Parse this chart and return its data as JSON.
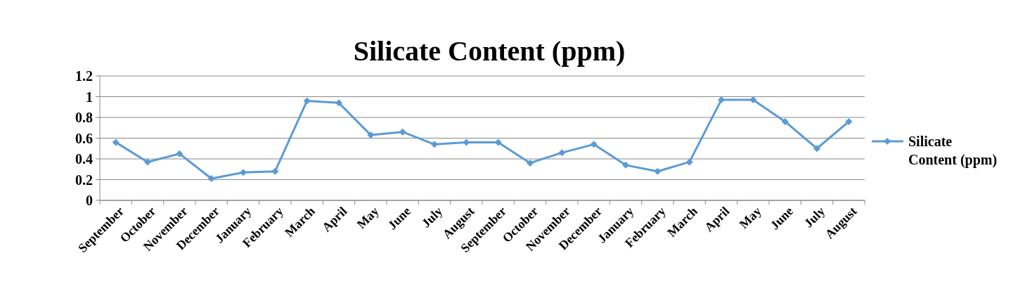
{
  "chart_data": {
    "type": "line",
    "title": "Silicate Content (ppm)",
    "categories": [
      "September",
      "October",
      "November",
      "December",
      "January",
      "February",
      "March",
      "April",
      "May",
      "June",
      "July",
      "August",
      "September",
      "October",
      "November",
      "December",
      "January",
      "February",
      "March",
      "April",
      "May",
      "June",
      "July",
      "August"
    ],
    "series": [
      {
        "name": "Silicate Content (ppm)",
        "color": "#5b9bd5",
        "values": [
          0.56,
          0.37,
          0.45,
          0.21,
          0.27,
          0.28,
          0.96,
          0.94,
          0.63,
          0.66,
          0.54,
          0.56,
          0.56,
          0.36,
          0.46,
          0.54,
          0.34,
          0.28,
          0.37,
          0.97,
          0.97,
          0.76,
          0.5,
          0.76
        ]
      }
    ],
    "ylim": [
      0,
      1.2
    ],
    "yticks": [
      0,
      0.2,
      0.4,
      0.6,
      0.8,
      1,
      1.2
    ],
    "grid": "y",
    "legend": "right",
    "marker": "diamond",
    "line_style": "solid"
  }
}
